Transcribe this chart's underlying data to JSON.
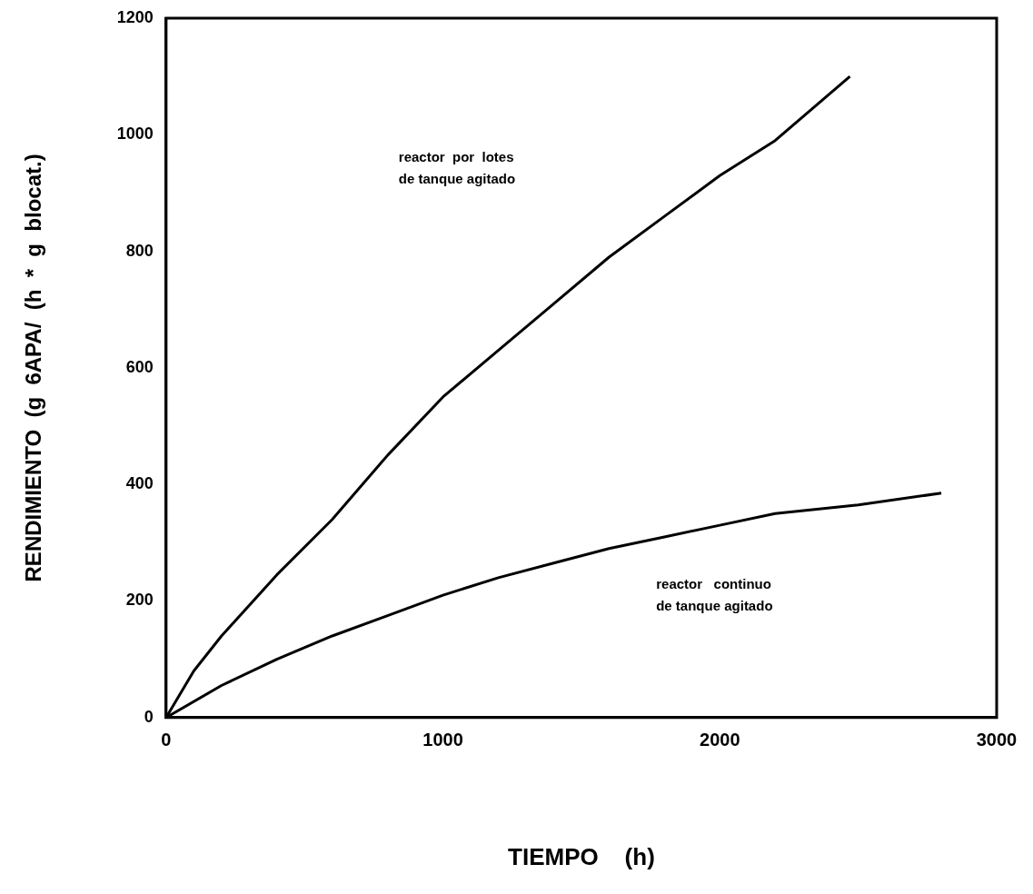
{
  "chart_data": {
    "type": "line",
    "xlabel": "TIEMPO    (h)",
    "ylabel": "RENDIMIENTO  (g  6APA/  (h  *  g  blocat.)",
    "xlim": [
      0,
      3000
    ],
    "xticks": [
      0,
      1000,
      2000,
      3000
    ],
    "ylim": [
      0,
      1200
    ],
    "yticks": [
      0,
      200,
      400,
      600,
      800,
      1000,
      1200
    ],
    "grid": false,
    "marker": "none",
    "line_style": "solid",
    "series": [
      {
        "color": "#000000",
        "x": [
          0,
          100,
          200,
          400,
          600,
          800,
          1000,
          1200,
          1400,
          1600,
          1800,
          2000,
          2200,
          2470
        ],
        "values": [
          0,
          80,
          140,
          245,
          340,
          450,
          550,
          630,
          710,
          790,
          860,
          930,
          990,
          1100
        ]
      },
      {
        "color": "#000000",
        "x": [
          0,
          200,
          400,
          600,
          800,
          1000,
          1200,
          1400,
          1600,
          1800,
          2000,
          2200,
          2500,
          2800
        ],
        "values": [
          0,
          55,
          100,
          140,
          175,
          210,
          240,
          265,
          290,
          310,
          330,
          350,
          365,
          385
        ]
      }
    ],
    "annotations": [
      "reactor  por  lotes\nde tanque agitado",
      "reactor   continuo\nde tanque agitado"
    ]
  }
}
